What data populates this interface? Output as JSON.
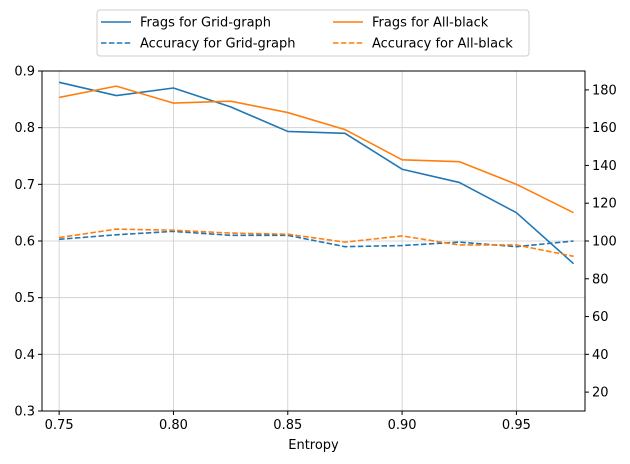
{
  "chart_data": {
    "type": "line",
    "xlabel": "Entropy",
    "x": [
      0.75,
      0.775,
      0.8,
      0.825,
      0.85,
      0.875,
      0.9,
      0.925,
      0.95,
      0.975
    ],
    "xlim": [
      0.7425,
      0.98
    ],
    "xticks": [
      "0.75",
      "0.80",
      "0.85",
      "0.90",
      "0.95"
    ],
    "xtick_values": [
      0.75,
      0.8,
      0.85,
      0.9,
      0.95
    ],
    "left_axis": {
      "ylabel": "",
      "ylim": [
        0.3,
        0.9
      ],
      "ticks": [
        "0.3",
        "0.4",
        "0.5",
        "0.6",
        "0.7",
        "0.8",
        "0.9"
      ],
      "tick_values": [
        0.3,
        0.4,
        0.5,
        0.6,
        0.7,
        0.8,
        0.9
      ]
    },
    "right_axis": {
      "ylabel": "",
      "ylim": [
        10,
        190
      ],
      "ticks": [
        "20",
        "40",
        "60",
        "80",
        "100",
        "120",
        "140",
        "160",
        "180"
      ],
      "tick_values": [
        20,
        40,
        60,
        80,
        100,
        120,
        140,
        160,
        180
      ]
    },
    "grid": true,
    "legend_placement": "top-center (outside plot), 2 columns",
    "series": [
      {
        "name": "Frags for Grid-graph",
        "axis": "right",
        "style": "solid",
        "color": "#1f77b4",
        "values": [
          184,
          177,
          181,
          171,
          158,
          157,
          138,
          131,
          115,
          88
        ]
      },
      {
        "name": "Accuracy for Grid-graph",
        "axis": "left",
        "style": "dashed",
        "color": "#1f77b4",
        "values": [
          0.603,
          0.611,
          0.617,
          0.61,
          0.61,
          0.59,
          0.592,
          0.598,
          0.59,
          0.6
        ]
      },
      {
        "name": "Frags for All-black",
        "axis": "right",
        "style": "solid",
        "color": "#ff7f0e",
        "values": [
          176,
          182,
          173,
          174,
          168,
          159,
          143,
          142,
          130,
          115
        ]
      },
      {
        "name": "Accuracy for All-black",
        "axis": "left",
        "style": "dashed",
        "color": "#ff7f0e",
        "values": [
          0.606,
          0.621,
          0.619,
          0.614,
          0.612,
          0.598,
          0.609,
          0.593,
          0.593,
          0.573
        ]
      }
    ]
  }
}
